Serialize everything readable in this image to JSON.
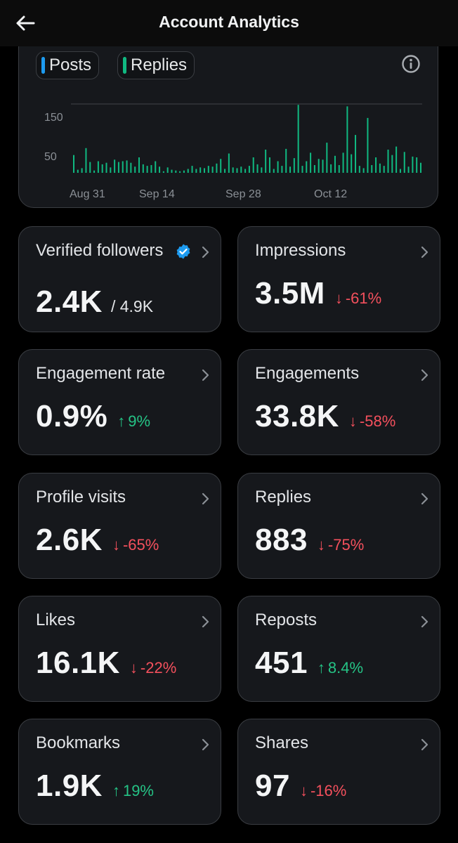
{
  "header": {
    "title": "Account Analytics",
    "back_icon": "arrow-left-icon"
  },
  "chart_legend": [
    {
      "label": "Posts",
      "color": "#1d9bf0"
    },
    {
      "label": "Replies",
      "color": "#10b981"
    }
  ],
  "chart_data": {
    "type": "bar",
    "y_ticks": [
      "150",
      "50"
    ],
    "y_tick_values": [
      150,
      50
    ],
    "x_tick_labels": [
      "Aug 31",
      "Sep 14",
      "Sep 28",
      "Oct 12"
    ],
    "x_tick_day_index": [
      0,
      14,
      28,
      42
    ],
    "grid": "horizontal",
    "bar_color": "#10b981",
    "values": [
      46,
      8,
      12,
      64,
      28,
      6,
      30,
      22,
      26,
      14,
      34,
      28,
      30,
      32,
      26,
      16,
      40,
      22,
      18,
      20,
      30,
      16,
      4,
      14,
      8,
      6,
      4,
      6,
      10,
      18,
      10,
      14,
      12,
      18,
      16,
      24,
      36,
      10,
      50,
      14,
      12,
      16,
      10,
      18,
      40,
      22,
      14,
      60,
      40,
      10,
      30,
      18,
      62,
      16,
      38,
      176,
      18,
      30,
      52,
      20,
      36,
      34,
      78,
      22,
      44,
      20,
      52,
      172,
      48,
      98,
      18,
      12,
      142,
      20,
      40,
      24,
      18,
      60,
      46,
      68,
      10,
      54,
      16,
      42,
      40,
      26
    ]
  },
  "metrics": [
    {
      "label": "Verified followers",
      "value": "2.4K",
      "sub": "/ 4.9K",
      "verified_icon": "verified-badge-icon"
    },
    {
      "label": "Impressions",
      "value": "3.5M",
      "change": "-61%",
      "direction": "down"
    },
    {
      "label": "Engagement rate",
      "value": "0.9%",
      "change": "9%",
      "direction": "up"
    },
    {
      "label": "Engagements",
      "value": "33.8K",
      "change": "-58%",
      "direction": "down"
    },
    {
      "label": "Profile visits",
      "value": "2.6K",
      "change": "-65%",
      "direction": "down"
    },
    {
      "label": "Replies",
      "value": "883",
      "change": "-75%",
      "direction": "down"
    },
    {
      "label": "Likes",
      "value": "16.1K",
      "change": "-22%",
      "direction": "down"
    },
    {
      "label": "Reposts",
      "value": "451",
      "change": "8.4%",
      "direction": "up"
    },
    {
      "label": "Bookmarks",
      "value": "1.9K",
      "change": "19%",
      "direction": "up"
    },
    {
      "label": "Shares",
      "value": "97",
      "change": "-16%",
      "direction": "down"
    }
  ],
  "colors": {
    "up": "#25c486",
    "down": "#f4505d",
    "verified": "#1d9bf0"
  }
}
